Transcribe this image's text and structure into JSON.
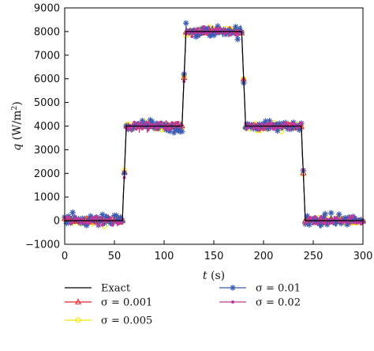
{
  "chart_data": {
    "type": "line",
    "xlabel_symbol": "t",
    "xlabel_unit": " (s)",
    "ylabel_symbol": "q",
    "ylabel_unit": " (W/m",
    "ylabel_sup": "2",
    "ylabel_close": ")",
    "xlim": [
      0,
      300
    ],
    "ylim": [
      -1000,
      9000
    ],
    "xticks": [
      0,
      50,
      100,
      150,
      200,
      250,
      300
    ],
    "yticks": [
      -1000,
      0,
      1000,
      2000,
      3000,
      4000,
      5000,
      6000,
      7000,
      8000,
      9000
    ],
    "x_tick_labels": [
      "0",
      "50",
      "100",
      "150",
      "200",
      "250",
      "300"
    ],
    "y_tick_labels": [
      "−1000",
      "0",
      "1000",
      "2000",
      "3000",
      "4000",
      "5000",
      "6000",
      "7000",
      "8000",
      "9000"
    ],
    "grid": false,
    "legend_position": "bottom",
    "x": [
      0,
      58,
      62,
      118,
      122,
      178,
      182,
      238,
      242,
      300
    ],
    "series": [
      {
        "name": "Exact",
        "color": "#000000",
        "marker": "none",
        "noise_sd": 0,
        "values": [
          0,
          0,
          4000,
          4000,
          8000,
          8000,
          4000,
          4000,
          0,
          0
        ]
      },
      {
        "name": "σ = 0.001",
        "color": "#e8212a",
        "marker": "triangle",
        "noise_sd": 60,
        "values": [
          0,
          0,
          4000,
          4000,
          8000,
          8000,
          4000,
          4000,
          0,
          0
        ]
      },
      {
        "name": "σ = 0.005",
        "color": "#f2e400",
        "marker": "circle",
        "noise_sd": 120,
        "values": [
          0,
          0,
          4000,
          4000,
          8000,
          8000,
          4000,
          4000,
          0,
          0
        ]
      },
      {
        "name": "σ = 0.01",
        "color": "#3b5bb5",
        "marker": "star",
        "noise_sd": 200,
        "values": [
          0,
          0,
          4000,
          4000,
          8000,
          8000,
          4000,
          4000,
          0,
          0
        ]
      },
      {
        "name": "σ = 0.02",
        "color": "#c2379b",
        "marker": "dot",
        "noise_sd": 160,
        "values": [
          0,
          0,
          4000,
          4000,
          8000,
          8000,
          4000,
          4000,
          0,
          0
        ]
      }
    ]
  }
}
